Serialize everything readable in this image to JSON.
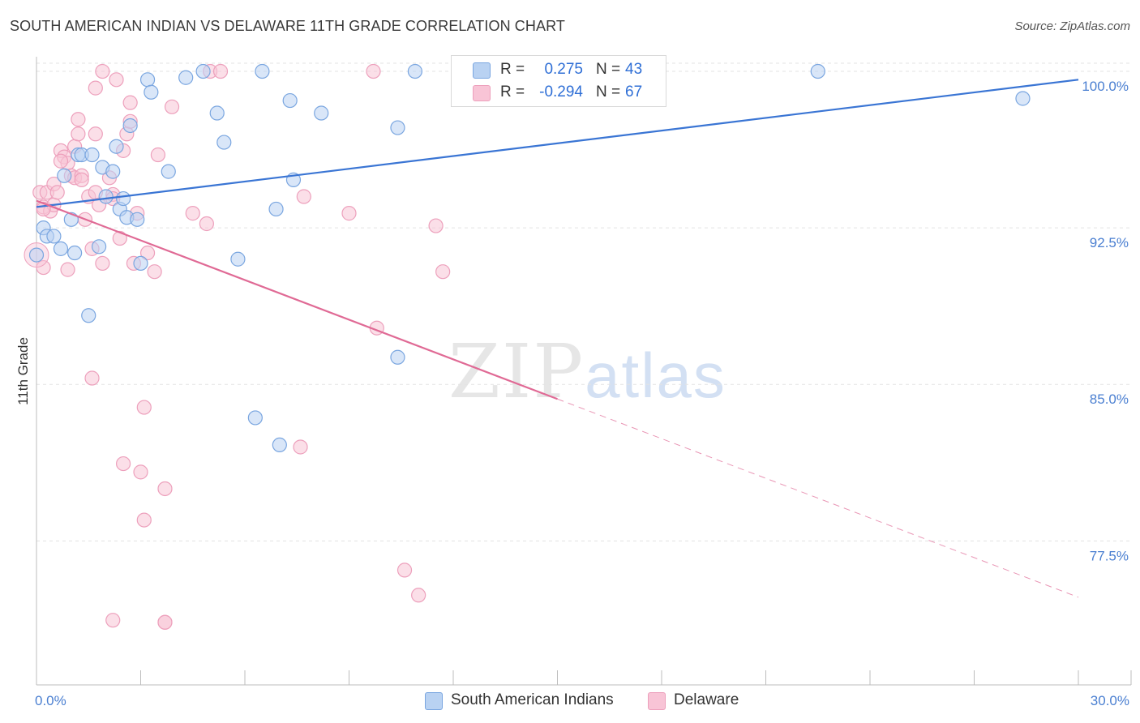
{
  "title": "SOUTH AMERICAN INDIAN VS DELAWARE 11TH GRADE CORRELATION CHART",
  "source": "Source: ZipAtlas.com",
  "watermark": {
    "zip": "ZIP",
    "atlas": "atlas"
  },
  "colors": {
    "blue": "#3a75d4",
    "blue_fill": "#b9d2f2",
    "blue_stroke": "#7aa6e0",
    "pink": "#e06a95",
    "pink_fill": "#f8c4d6",
    "pink_stroke": "#eda0bc",
    "grid": "#e3e3e3",
    "tick_label": "#4a7fd1"
  },
  "legend": {
    "rows": [
      {
        "name": "South American Indians",
        "r_label": "R =",
        "r_value": "0.275",
        "n_label": "N =",
        "n_value": "43"
      },
      {
        "name": "Delaware",
        "r_label": "R =",
        "r_value": "-0.294",
        "n_label": "N =",
        "n_value": "67"
      }
    ]
  },
  "chart_data": {
    "type": "scatter",
    "title": "SOUTH AMERICAN INDIAN VS DELAWARE 11TH GRADE CORRELATION CHART",
    "xlabel": "",
    "ylabel": "11th Grade",
    "xlim": [
      0,
      30
    ],
    "ylim": [
      70.6,
      100.7
    ],
    "x_tick_labels": [
      "0.0%",
      "30.0%"
    ],
    "y_ticks": [
      100.0,
      92.5,
      85.0,
      77.5
    ],
    "y_tick_labels": [
      "100.0%",
      "92.5%",
      "85.0%",
      "77.5%"
    ],
    "grid": true,
    "series": [
      {
        "name": "South American Indians",
        "r": 0.275,
        "n": 43,
        "trend": {
          "x": [
            0,
            30
          ],
          "y": [
            93.5,
            99.6
          ],
          "dashed_from": null
        },
        "points": [
          [
            0.0,
            91.2
          ],
          [
            0.2,
            92.5
          ],
          [
            0.3,
            92.1
          ],
          [
            0.5,
            92.1
          ],
          [
            0.7,
            91.5
          ],
          [
            0.8,
            95.0
          ],
          [
            1.0,
            92.9
          ],
          [
            1.1,
            91.3
          ],
          [
            1.2,
            96.0
          ],
          [
            1.3,
            96.0
          ],
          [
            1.5,
            88.3
          ],
          [
            1.6,
            96.0
          ],
          [
            1.8,
            91.6
          ],
          [
            1.9,
            95.4
          ],
          [
            2.0,
            94.0
          ],
          [
            2.2,
            95.2
          ],
          [
            2.3,
            96.4
          ],
          [
            2.4,
            93.4
          ],
          [
            2.5,
            93.9
          ],
          [
            2.6,
            93.0
          ],
          [
            2.7,
            97.4
          ],
          [
            2.9,
            92.9
          ],
          [
            3.0,
            90.8
          ],
          [
            3.2,
            99.6
          ],
          [
            3.3,
            99.0
          ],
          [
            3.8,
            95.2
          ],
          [
            4.3,
            99.7
          ],
          [
            4.8,
            100.0
          ],
          [
            5.2,
            98.0
          ],
          [
            5.4,
            96.6
          ],
          [
            5.8,
            91.0
          ],
          [
            6.3,
            83.4
          ],
          [
            6.5,
            100.0
          ],
          [
            6.9,
            93.4
          ],
          [
            7.0,
            82.1
          ],
          [
            7.3,
            98.6
          ],
          [
            7.4,
            94.8
          ],
          [
            8.2,
            98.0
          ],
          [
            10.4,
            86.3
          ],
          [
            10.4,
            97.3
          ],
          [
            10.9,
            100.0
          ],
          [
            22.5,
            100.0
          ],
          [
            28.4,
            98.7
          ]
        ]
      },
      {
        "name": "Delaware",
        "r": -0.294,
        "n": 67,
        "trend": {
          "x": [
            0,
            30
          ],
          "y": [
            93.8,
            74.8
          ],
          "dashed_from": 15.0
        },
        "points": [
          [
            0.1,
            94.2
          ],
          [
            0.2,
            93.5
          ],
          [
            0.2,
            90.6
          ],
          [
            0.3,
            94.2
          ],
          [
            0.4,
            93.3
          ],
          [
            0.5,
            94.6
          ],
          [
            0.5,
            93.6
          ],
          [
            0.6,
            94.2
          ],
          [
            0.7,
            96.2
          ],
          [
            0.8,
            95.9
          ],
          [
            0.9,
            95.6
          ],
          [
            0.9,
            90.5
          ],
          [
            1.0,
            95.0
          ],
          [
            1.1,
            96.4
          ],
          [
            1.1,
            94.9
          ],
          [
            1.2,
            97.7
          ],
          [
            1.2,
            97.0
          ],
          [
            1.3,
            95.0
          ],
          [
            1.4,
            92.9
          ],
          [
            1.5,
            94.0
          ],
          [
            1.6,
            91.5
          ],
          [
            1.6,
            85.3
          ],
          [
            1.7,
            94.2
          ],
          [
            1.7,
            97.0
          ],
          [
            1.7,
            99.2
          ],
          [
            1.8,
            93.6
          ],
          [
            1.9,
            100.0
          ],
          [
            1.9,
            90.8
          ],
          [
            2.1,
            94.9
          ],
          [
            2.2,
            94.1
          ],
          [
            2.2,
            93.9
          ],
          [
            2.3,
            99.6
          ],
          [
            2.4,
            92.0
          ],
          [
            2.5,
            96.2
          ],
          [
            2.5,
            81.2
          ],
          [
            2.6,
            97.0
          ],
          [
            2.7,
            98.5
          ],
          [
            2.7,
            97.6
          ],
          [
            2.8,
            90.8
          ],
          [
            2.9,
            93.2
          ],
          [
            3.0,
            80.8
          ],
          [
            3.1,
            78.5
          ],
          [
            3.1,
            83.9
          ],
          [
            3.2,
            91.3
          ],
          [
            3.4,
            90.4
          ],
          [
            3.5,
            96.0
          ],
          [
            3.7,
            73.6
          ],
          [
            3.7,
            80.0
          ],
          [
            3.9,
            98.3
          ],
          [
            4.5,
            93.2
          ],
          [
            4.9,
            92.7
          ],
          [
            5.0,
            100.0
          ],
          [
            5.3,
            100.0
          ],
          [
            7.6,
            82.0
          ],
          [
            7.7,
            94.0
          ],
          [
            9.0,
            93.2
          ],
          [
            9.7,
            100.0
          ],
          [
            9.8,
            87.7
          ],
          [
            10.6,
            76.1
          ],
          [
            11.0,
            74.9
          ],
          [
            11.5,
            92.6
          ],
          [
            11.7,
            90.4
          ],
          [
            2.2,
            73.7
          ],
          [
            0.2,
            93.4
          ],
          [
            0.7,
            95.7
          ],
          [
            1.3,
            94.8
          ],
          [
            3.7,
            73.6
          ]
        ]
      }
    ]
  }
}
